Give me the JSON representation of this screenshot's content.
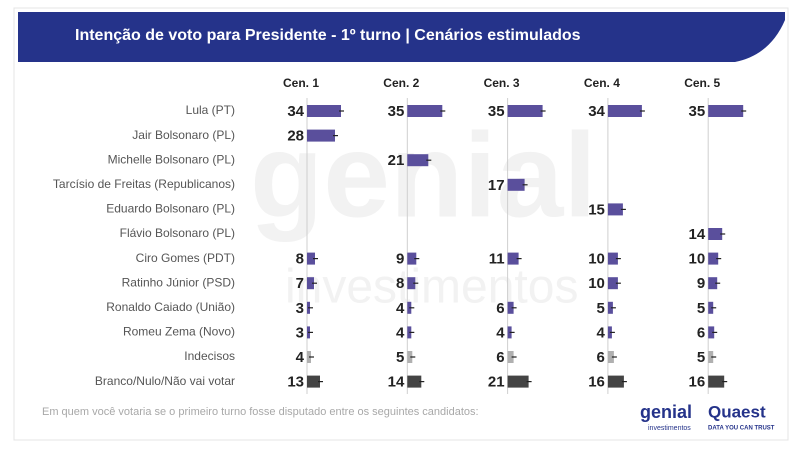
{
  "chart_data": {
    "type": "bar",
    "title": "Intenção de voto para Presidente - 1º turno | Cenários estimulados",
    "categories": [
      "Lula (PT)",
      "Jair Bolsonaro (PL)",
      "Michelle Bolsonaro (PL)",
      "Tarcísio de Freitas (Republicanos)",
      "Eduardo Bolsonaro (PL)",
      "Flávio Bolsonaro (PL)",
      "Ciro Gomes (PDT)",
      "Ratinho Júnior (PSD)",
      "Ronaldo Caiado (União)",
      "Romeu Zema (Novo)",
      "Indecisos",
      "Branco/Nulo/Não vai votar"
    ],
    "bar_colors": [
      "#5a4f9c",
      "#5a4f9c",
      "#5a4f9c",
      "#5a4f9c",
      "#5a4f9c",
      "#5a4f9c",
      "#5a4f9c",
      "#5a4f9c",
      "#5a4f9c",
      "#5a4f9c",
      "#b0b0b0",
      "#444444"
    ],
    "series": [
      {
        "name": "Cen. 1",
        "values": [
          34,
          28,
          null,
          null,
          null,
          null,
          8,
          7,
          3,
          3,
          4,
          13
        ]
      },
      {
        "name": "Cen. 2",
        "values": [
          35,
          null,
          21,
          null,
          null,
          null,
          9,
          8,
          4,
          4,
          5,
          14
        ]
      },
      {
        "name": "Cen. 3",
        "values": [
          35,
          null,
          null,
          17,
          null,
          null,
          11,
          null,
          6,
          4,
          6,
          21
        ]
      },
      {
        "name": "Cen. 4",
        "values": [
          34,
          null,
          null,
          null,
          15,
          null,
          10,
          10,
          5,
          4,
          6,
          16
        ]
      },
      {
        "name": "Cen. 5",
        "values": [
          35,
          null,
          null,
          null,
          null,
          14,
          10,
          9,
          5,
          6,
          5,
          16
        ]
      }
    ],
    "footnote": "Em quem você votaria se o primeiro turno fosse disputado entre os seguintes candidatos:",
    "watermark": [
      "genial",
      "investimentos"
    ],
    "logos": {
      "genial": "genial",
      "genial_sub": "investimentos",
      "quaest": "Quaest",
      "quaest_sub": "DATA YOU CAN TRUST"
    }
  }
}
